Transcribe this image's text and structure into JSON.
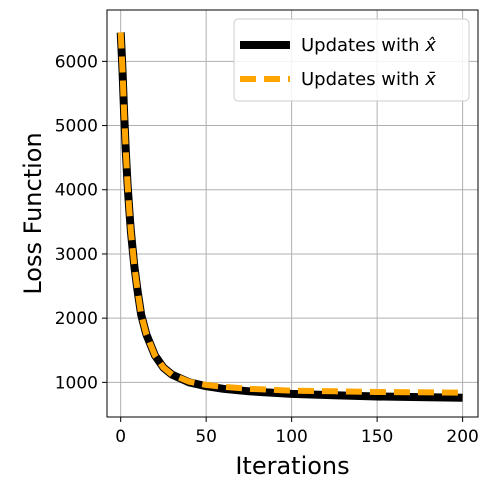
{
  "chart_data": {
    "type": "line",
    "xlabel": "Iterations",
    "ylabel": "Loss Function",
    "xlim": [
      -8,
      209
    ],
    "ylim": [
      460,
      6800
    ],
    "xticks": [
      0,
      50,
      100,
      150,
      200
    ],
    "yticks": [
      1000,
      2000,
      3000,
      4000,
      5000,
      6000
    ],
    "grid": true,
    "legend_position": "top-right",
    "series": [
      {
        "name": "Updates with x̂",
        "legend_base": "Updates with ",
        "legend_symbol": "x",
        "legend_accent": "̂",
        "color": "#000000",
        "style": "solid",
        "x": [
          0,
          1,
          2,
          3,
          4,
          5,
          6,
          8,
          10,
          12,
          15,
          20,
          25,
          30,
          40,
          50,
          60,
          75,
          100,
          125,
          150,
          175,
          200
        ],
        "y": [
          6450,
          5900,
          5200,
          4600,
          4100,
          3700,
          3350,
          2800,
          2400,
          2050,
          1750,
          1420,
          1230,
          1120,
          1000,
          940,
          900,
          860,
          820,
          800,
          780,
          770,
          760
        ]
      },
      {
        "name": "Updates with x̄",
        "legend_base": "Updates with ",
        "legend_symbol": "x",
        "legend_accent": "̄",
        "color": "#ffa500",
        "style": "dashed",
        "x": [
          0,
          1,
          2,
          3,
          4,
          5,
          6,
          8,
          10,
          12,
          15,
          20,
          25,
          30,
          40,
          50,
          60,
          75,
          100,
          125,
          150,
          175,
          200
        ],
        "y": [
          6450,
          5900,
          5200,
          4600,
          4100,
          3700,
          3350,
          2800,
          2400,
          2050,
          1750,
          1420,
          1230,
          1120,
          1010,
          960,
          930,
          900,
          870,
          860,
          850,
          845,
          840
        ]
      }
    ]
  }
}
